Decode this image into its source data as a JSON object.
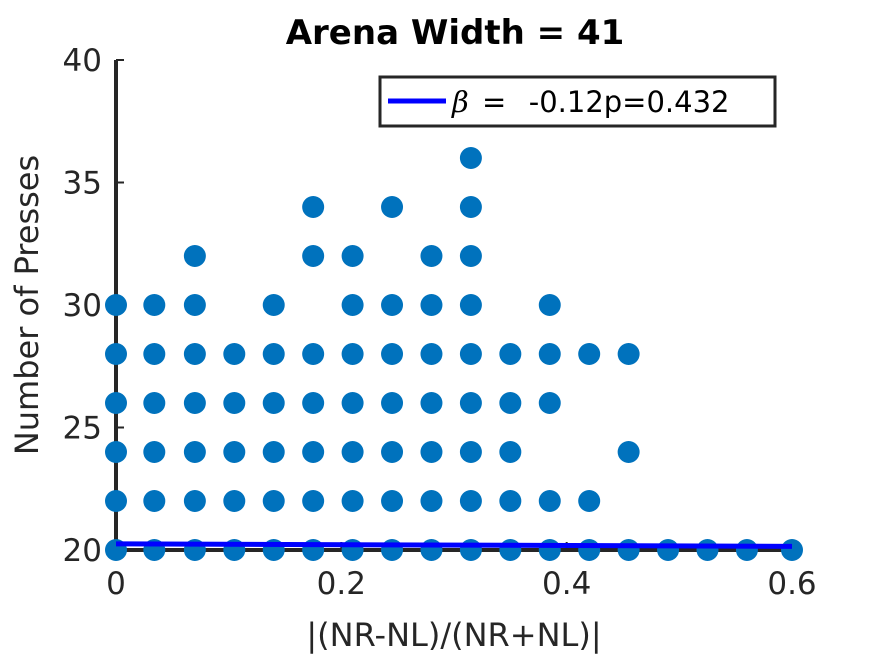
{
  "chart_data": {
    "type": "scatter",
    "title": "Arena Width =  41",
    "xlabel": "|(NR-NL)/(NR+NL)|",
    "ylabel": "Number of Presses",
    "xlim": [
      0,
      0.6
    ],
    "ylim": [
      20,
      40
    ],
    "xticks": [
      "0",
      "0.2",
      "0.4",
      "0.6"
    ],
    "yticks": [
      "20",
      "25",
      "30",
      "35",
      "40"
    ],
    "grid": false,
    "legend_position": "top-right",
    "marker_color": "#0072bd",
    "fit_color": "#0000ff",
    "legend": {
      "symbol": "β",
      "equals": " =  ",
      "value": "-0.12p=0.432"
    },
    "fit_line": {
      "x": [
        0,
        0.6
      ],
      "y": [
        20.25,
        20.15
      ]
    },
    "points": [
      {
        "x": 0.0,
        "y": [
          20,
          22,
          24,
          26,
          28,
          30
        ]
      },
      {
        "x": 0.034,
        "y": [
          20,
          22,
          24,
          26,
          28,
          30
        ]
      },
      {
        "x": 0.07,
        "y": [
          20,
          22,
          24,
          26,
          28,
          30,
          32
        ]
      },
      {
        "x": 0.105,
        "y": [
          20,
          22,
          24,
          26,
          28
        ]
      },
      {
        "x": 0.14,
        "y": [
          20,
          22,
          24,
          26,
          28,
          30
        ]
      },
      {
        "x": 0.175,
        "y": [
          20,
          22,
          24,
          26,
          28,
          32,
          34
        ]
      },
      {
        "x": 0.21,
        "y": [
          20,
          22,
          24,
          26,
          28,
          30,
          32
        ]
      },
      {
        "x": 0.245,
        "y": [
          20,
          22,
          24,
          26,
          28,
          30,
          34
        ]
      },
      {
        "x": 0.28,
        "y": [
          20,
          22,
          24,
          26,
          28,
          30,
          32
        ]
      },
      {
        "x": 0.315,
        "y": [
          20,
          22,
          24,
          26,
          28,
          30,
          32,
          34,
          36
        ]
      },
      {
        "x": 0.35,
        "y": [
          20,
          22,
          24,
          26,
          28
        ]
      },
      {
        "x": 0.385,
        "y": [
          20,
          22,
          26,
          28,
          30
        ]
      },
      {
        "x": 0.42,
        "y": [
          20,
          22,
          28
        ]
      },
      {
        "x": 0.455,
        "y": [
          20,
          24,
          28
        ]
      },
      {
        "x": 0.49,
        "y": [
          20
        ]
      },
      {
        "x": 0.525,
        "y": [
          20
        ]
      },
      {
        "x": 0.56,
        "y": [
          20
        ]
      },
      {
        "x": 0.6,
        "y": [
          20
        ]
      }
    ]
  }
}
